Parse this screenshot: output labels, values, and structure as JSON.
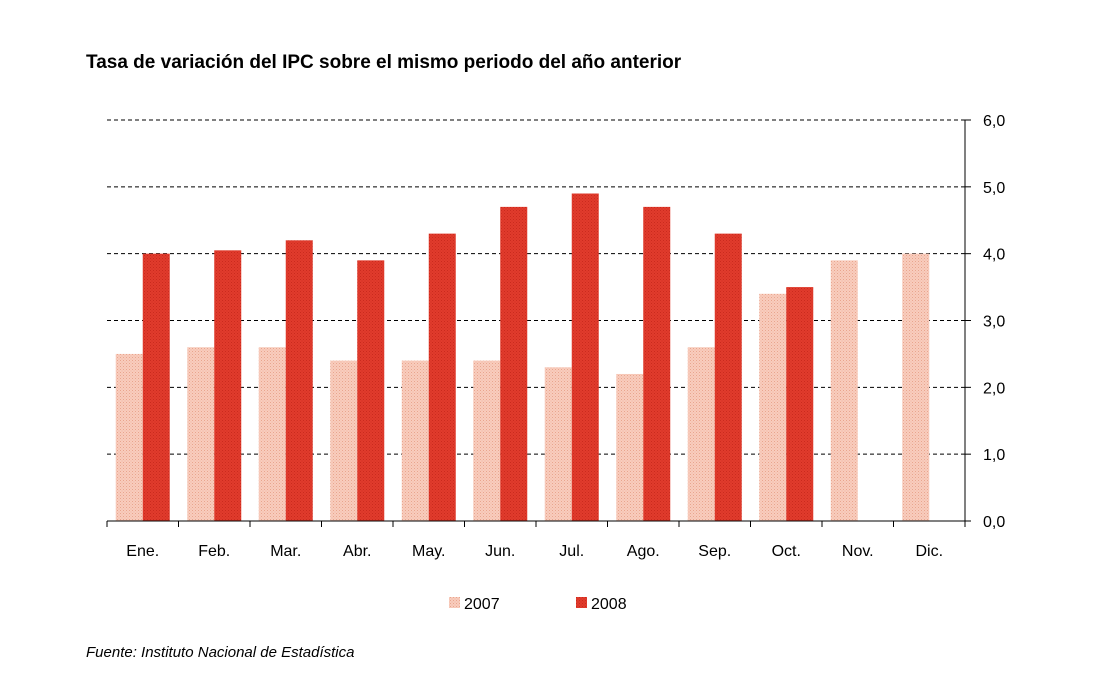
{
  "chart_data": {
    "type": "bar",
    "title": "Tasa de variación del IPC sobre el mismo periodo del año anterior",
    "source": "Fuente: Instituto Nacional de Estadística",
    "categories": [
      "Ene.",
      "Feb.",
      "Mar.",
      "Abr.",
      "May.",
      "Jun.",
      "Jul.",
      "Ago.",
      "Sep.",
      "Oct.",
      "Nov.",
      "Dic."
    ],
    "series": [
      {
        "name": "2007",
        "color": "#f6c1ad",
        "values": [
          2.5,
          2.6,
          2.6,
          2.4,
          2.4,
          2.4,
          2.3,
          2.2,
          2.6,
          3.4,
          3.9,
          4.0
        ]
      },
      {
        "name": "2008",
        "color": "#e0392a",
        "values": [
          4.0,
          4.05,
          4.2,
          3.9,
          4.3,
          4.7,
          4.9,
          4.7,
          4.3,
          3.5,
          null,
          null
        ]
      }
    ],
    "ylim": [
      0,
      6
    ],
    "yticks": [
      "0,0",
      "1,0",
      "2,0",
      "3,0",
      "4,0",
      "5,0",
      "6,0"
    ],
    "yaxis_side": "right",
    "grid": "dashed-horizontal",
    "legend_position": "bottom"
  }
}
